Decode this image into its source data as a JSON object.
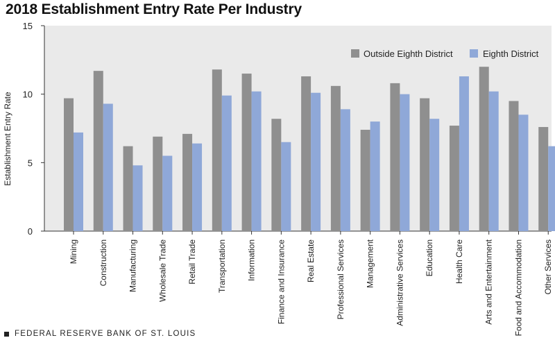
{
  "title": "2018 Establishment Entry Rate Per Industry",
  "footer": "FEDERAL RESERVE BANK OF ST. LOUIS",
  "colors": {
    "outside": "#8f8f8f",
    "eighth": "#8fa8d8",
    "plot_bg": "#eaeaea",
    "axis": "#333333"
  },
  "chart_data": {
    "type": "bar",
    "title": "2018 Establishment Entry Rate Per Industry",
    "xlabel": "",
    "ylabel": "Establishment Entry Rate",
    "ylim": [
      0,
      15
    ],
    "yticks": [
      0,
      5,
      10,
      15
    ],
    "legend_position": "top-right",
    "categories": [
      "Mining",
      "Construction",
      "Manufacturing",
      "Wholesale Trade",
      "Retail Trade",
      "Transportation",
      "Information",
      "Finance and Insurance",
      "Real Estate",
      "Professional Services",
      "Management",
      "Administrative Services",
      "Education",
      "Health Care",
      "Arts and Entertainment",
      "Food and Accommodation",
      "Other Services"
    ],
    "series": [
      {
        "name": "Outside Eighth District",
        "values": [
          9.7,
          11.7,
          6.2,
          6.9,
          7.1,
          11.8,
          11.5,
          8.2,
          11.3,
          10.6,
          7.4,
          10.8,
          9.7,
          7.7,
          12.0,
          9.5,
          7.6
        ]
      },
      {
        "name": "Eighth District",
        "values": [
          7.2,
          9.3,
          4.8,
          5.5,
          6.4,
          9.9,
          10.2,
          6.5,
          10.1,
          8.9,
          8.0,
          10.0,
          8.2,
          11.3,
          10.2,
          8.5,
          6.2
        ]
      }
    ]
  }
}
